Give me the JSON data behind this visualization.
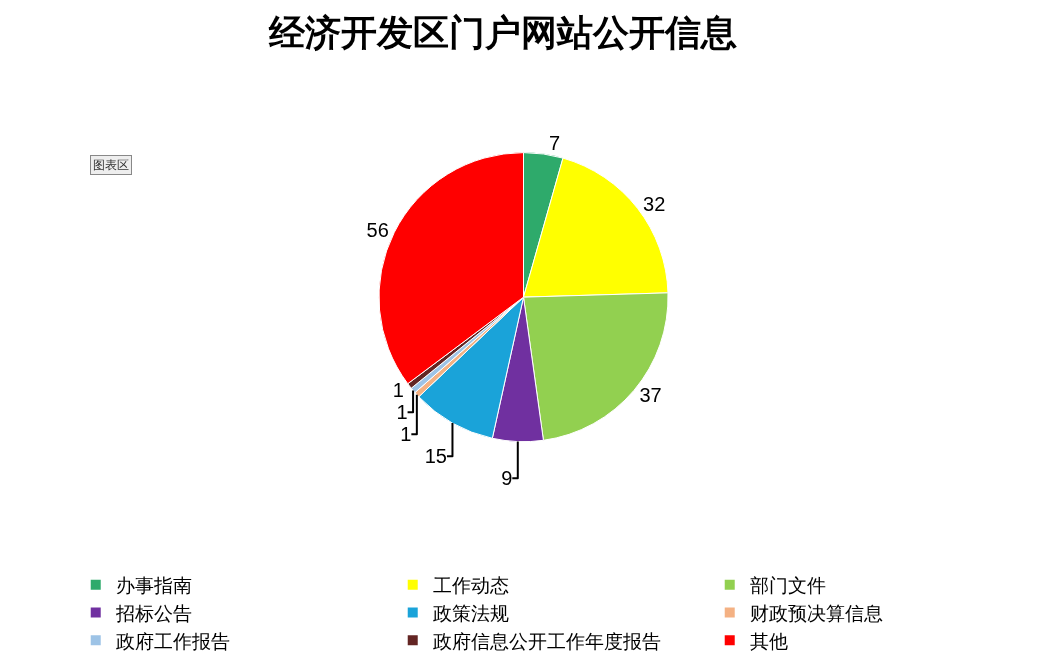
{
  "chart_data": {
    "type": "pie",
    "title": "经济开发区门户网站公开信息",
    "categories": [
      "办事指南",
      "工作动态",
      "部门文件",
      "招标公告",
      "政策法规",
      "财政预决算信息",
      "政府工作报告",
      "政府信息公开工作年度报告",
      "其他"
    ],
    "values": [
      7,
      32,
      37,
      9,
      15,
      1,
      1,
      1,
      56
    ],
    "colors": [
      "#2eaa6b",
      "#ffff00",
      "#92d050",
      "#7030a0",
      "#1aa3d9",
      "#f4b183",
      "#9dc3e6",
      "#632523",
      "#ff0000"
    ],
    "data_labels": true,
    "legend": "bottom",
    "annotations": [
      "图表区"
    ]
  }
}
